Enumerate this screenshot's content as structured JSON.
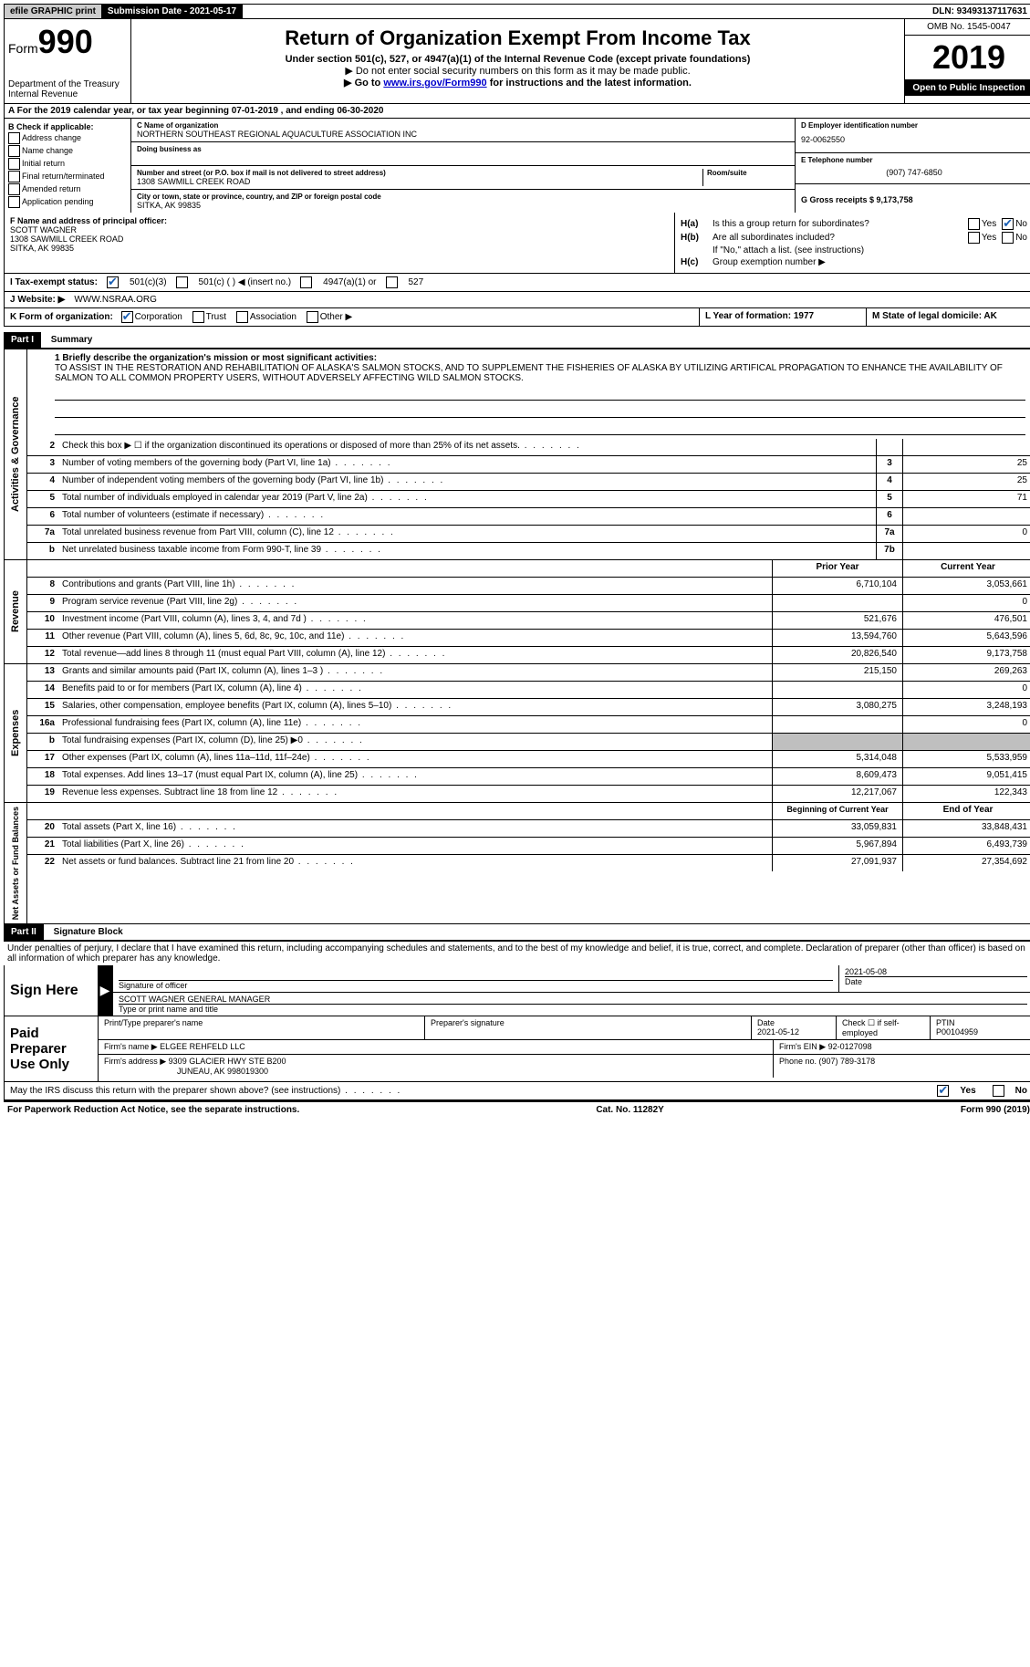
{
  "topbar": {
    "efile": "efile GRAPHIC print",
    "submission_label": "Submission Date - 2021-05-17",
    "dln": "DLN: 93493137117631"
  },
  "header": {
    "form_prefix": "Form",
    "form_number": "990",
    "dept1": "Department of the Treasury",
    "dept2": "Internal Revenue",
    "title": "Return of Organization Exempt From Income Tax",
    "subtitle": "Under section 501(c), 527, or 4947(a)(1) of the Internal Revenue Code (except private foundations)",
    "note1": "▶ Do not enter social security numbers on this form as it may be made public.",
    "note2_pre": "▶ Go to ",
    "note2_link": "www.irs.gov/Form990",
    "note2_post": " for instructions and the latest information.",
    "omb": "OMB No. 1545-0047",
    "year": "2019",
    "open_pub": "Open to Public Inspection"
  },
  "row_a": "A For the 2019 calendar year, or tax year beginning 07-01-2019  , and ending 06-30-2020",
  "col_b": {
    "title": "B Check if applicable:",
    "opts": [
      "Address change",
      "Name change",
      "Initial return",
      "Final return/terminated",
      "Amended return",
      "Application pending"
    ]
  },
  "col_c": {
    "name_label": "C Name of organization",
    "name": "NORTHERN SOUTHEAST REGIONAL AQUACULTURE ASSOCIATION INC",
    "dba_label": "Doing business as",
    "addr_label": "Number and street (or P.O. box if mail is not delivered to street address)",
    "room_label": "Room/suite",
    "addr": "1308 SAWMILL CREEK ROAD",
    "city_label": "City or town, state or province, country, and ZIP or foreign postal code",
    "city": "SITKA, AK  99835"
  },
  "col_d": {
    "ein_label": "D Employer identification number",
    "ein": "92-0062550",
    "phone_label": "E Telephone number",
    "phone": "(907) 747-6850",
    "gross_label": "G Gross receipts $ 9,173,758"
  },
  "col_f": {
    "label": "F Name and address of principal officer:",
    "name": "SCOTT WAGNER",
    "addr1": "1308 SAWMILL CREEK ROAD",
    "addr2": "SITKA, AK  99835"
  },
  "col_h": {
    "a_label": "H(a)",
    "a_text": "Is this a group return for subordinates?",
    "b_label": "H(b)",
    "b_text": "Are all subordinates included?",
    "b_note": "If \"No,\" attach a list. (see instructions)",
    "c_label": "H(c)",
    "c_text": "Group exemption number ▶",
    "yes": "Yes",
    "no": "No"
  },
  "row_i": {
    "label": "I   Tax-exempt status:",
    "o1": "501(c)(3)",
    "o2": "501(c) (  ) ◀ (insert no.)",
    "o3": "4947(a)(1) or",
    "o4": "527"
  },
  "row_j": {
    "label": "J   Website: ▶",
    "val": "WWW.NSRAA.ORG"
  },
  "row_k": {
    "label": "K Form of organization:",
    "o1": "Corporation",
    "o2": "Trust",
    "o3": "Association",
    "o4": "Other ▶",
    "l": "L Year of formation: 1977",
    "m": "M State of legal domicile: AK"
  },
  "part1": {
    "header": "Part I",
    "title": "Summary"
  },
  "mission": {
    "label": "1  Briefly describe the organization's mission or most significant activities:",
    "text": "TO ASSIST IN THE RESTORATION AND REHABILITATION OF ALASKA'S SALMON STOCKS, AND TO SUPPLEMENT THE FISHERIES OF ALASKA BY UTILIZING ARTIFICAL PROPAGATION TO ENHANCE THE AVAILABILITY OF SALMON TO ALL COMMON PROPERTY USERS, WITHOUT ADVERSELY AFFECTING WILD SALMON STOCKS."
  },
  "gov_rows": [
    {
      "n": "2",
      "d": "Check this box ▶ ☐  if the organization discontinued its operations or disposed of more than 25% of its net assets.",
      "box": "",
      "v": ""
    },
    {
      "n": "3",
      "d": "Number of voting members of the governing body (Part VI, line 1a)",
      "box": "3",
      "v": "25"
    },
    {
      "n": "4",
      "d": "Number of independent voting members of the governing body (Part VI, line 1b)",
      "box": "4",
      "v": "25"
    },
    {
      "n": "5",
      "d": "Total number of individuals employed in calendar year 2019 (Part V, line 2a)",
      "box": "5",
      "v": "71"
    },
    {
      "n": "6",
      "d": "Total number of volunteers (estimate if necessary)",
      "box": "6",
      "v": ""
    },
    {
      "n": "7a",
      "d": "Total unrelated business revenue from Part VIII, column (C), line 12",
      "box": "7a",
      "v": "0"
    },
    {
      "n": "b",
      "d": "Net unrelated business taxable income from Form 990-T, line 39",
      "box": "7b",
      "v": ""
    }
  ],
  "rev_header": {
    "py": "Prior Year",
    "cy": "Current Year"
  },
  "rev_rows": [
    {
      "n": "8",
      "d": "Contributions and grants (Part VIII, line 1h)",
      "py": "6,710,104",
      "cy": "3,053,661"
    },
    {
      "n": "9",
      "d": "Program service revenue (Part VIII, line 2g)",
      "py": "",
      "cy": "0"
    },
    {
      "n": "10",
      "d": "Investment income (Part VIII, column (A), lines 3, 4, and 7d )",
      "py": "521,676",
      "cy": "476,501"
    },
    {
      "n": "11",
      "d": "Other revenue (Part VIII, column (A), lines 5, 6d, 8c, 9c, 10c, and 11e)",
      "py": "13,594,760",
      "cy": "5,643,596"
    },
    {
      "n": "12",
      "d": "Total revenue—add lines 8 through 11 (must equal Part VIII, column (A), line 12)",
      "py": "20,826,540",
      "cy": "9,173,758"
    }
  ],
  "exp_rows": [
    {
      "n": "13",
      "d": "Grants and similar amounts paid (Part IX, column (A), lines 1–3 )",
      "py": "215,150",
      "cy": "269,263"
    },
    {
      "n": "14",
      "d": "Benefits paid to or for members (Part IX, column (A), line 4)",
      "py": "",
      "cy": "0"
    },
    {
      "n": "15",
      "d": "Salaries, other compensation, employee benefits (Part IX, column (A), lines 5–10)",
      "py": "3,080,275",
      "cy": "3,248,193"
    },
    {
      "n": "16a",
      "d": "Professional fundraising fees (Part IX, column (A), line 11e)",
      "py": "",
      "cy": "0"
    },
    {
      "n": "b",
      "d": "Total fundraising expenses (Part IX, column (D), line 25) ▶0",
      "py": "GRAY",
      "cy": "GRAY"
    },
    {
      "n": "17",
      "d": "Other expenses (Part IX, column (A), lines 11a–11d, 11f–24e)",
      "py": "5,314,048",
      "cy": "5,533,959"
    },
    {
      "n": "18",
      "d": "Total expenses. Add lines 13–17 (must equal Part IX, column (A), line 25)",
      "py": "8,609,473",
      "cy": "9,051,415"
    },
    {
      "n": "19",
      "d": "Revenue less expenses. Subtract line 18 from line 12",
      "py": "12,217,067",
      "cy": "122,343"
    }
  ],
  "na_header": {
    "py": "Beginning of Current Year",
    "cy": "End of Year"
  },
  "na_rows": [
    {
      "n": "20",
      "d": "Total assets (Part X, line 16)",
      "py": "33,059,831",
      "cy": "33,848,431"
    },
    {
      "n": "21",
      "d": "Total liabilities (Part X, line 26)",
      "py": "5,967,894",
      "cy": "6,493,739"
    },
    {
      "n": "22",
      "d": "Net assets or fund balances. Subtract line 21 from line 20",
      "py": "27,091,937",
      "cy": "27,354,692"
    }
  ],
  "side_labels": {
    "gov": "Activities & Governance",
    "rev": "Revenue",
    "exp": "Expenses",
    "na": "Net Assets or Fund Balances"
  },
  "part2": {
    "header": "Part II",
    "title": "Signature Block",
    "perjury": "Under penalties of perjury, I declare that I have examined this return, including accompanying schedules and statements, and to the best of my knowledge and belief, it is true, correct, and complete. Declaration of preparer (other than officer) is based on all information of which preparer has any knowledge."
  },
  "sign": {
    "label": "Sign Here",
    "sig_label": "Signature of officer",
    "date": "2021-05-08",
    "date_label": "Date",
    "name": "SCOTT WAGNER  GENERAL MANAGER",
    "name_label": "Type or print name and title"
  },
  "prep": {
    "label": "Paid Preparer Use Only",
    "r1c1": "Print/Type preparer's name",
    "r1c2": "Preparer's signature",
    "r1c3l": "Date",
    "r1c3": "2021-05-12",
    "r1c4": "Check ☐ if self-employed",
    "r1c5l": "PTIN",
    "r1c5": "P00104959",
    "r2l": "Firm's name    ▶",
    "r2": "ELGEE REHFELD LLC",
    "r2r": "Firm's EIN ▶ 92-0127098",
    "r3l": "Firm's address ▶",
    "r3a": "9309 GLACIER HWY STE B200",
    "r3b": "JUNEAU, AK  998019300",
    "r3r": "Phone no. (907) 789-3178"
  },
  "discuss": {
    "text": "May the IRS discuss this return with the preparer shown above? (see instructions)",
    "yes": "Yes",
    "no": "No"
  },
  "footer": {
    "left": "For Paperwork Reduction Act Notice, see the separate instructions.",
    "mid": "Cat. No. 11282Y",
    "right": "Form 990 (2019)"
  }
}
